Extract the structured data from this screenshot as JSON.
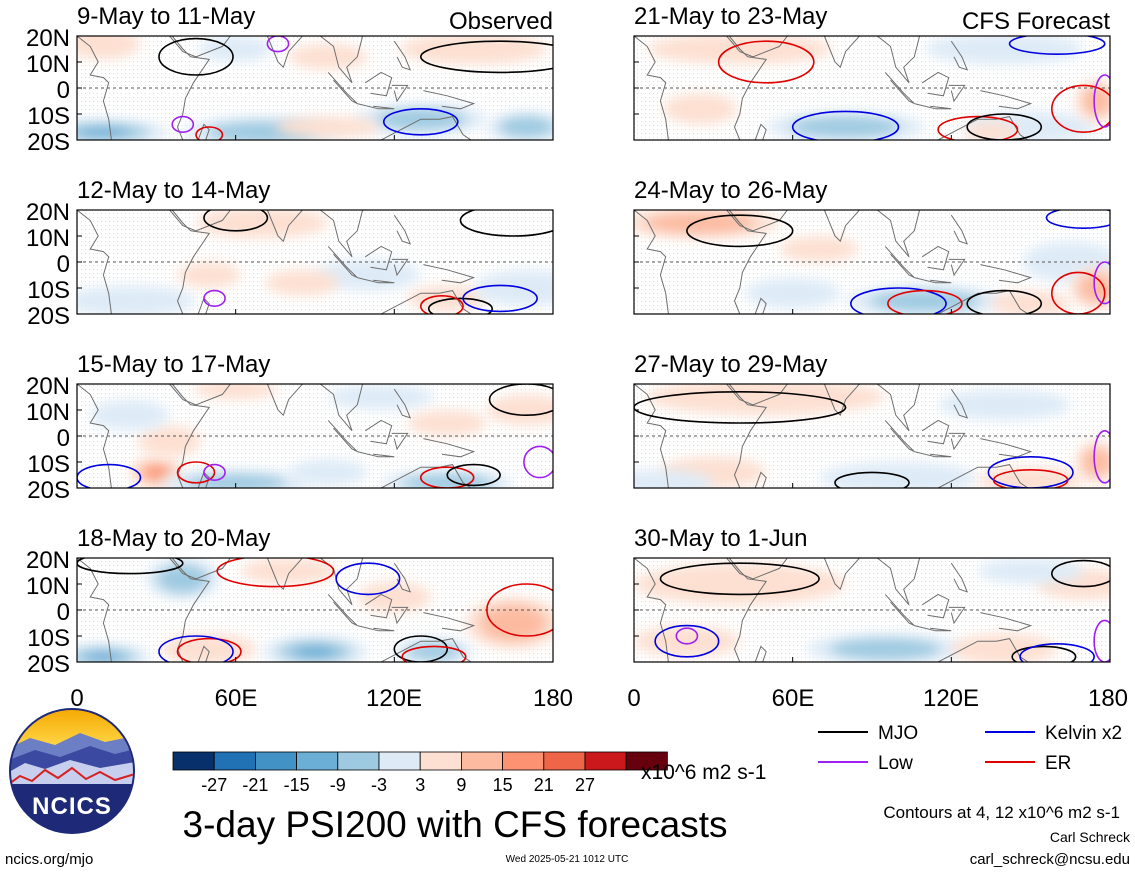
{
  "figure": {
    "title": "3-day PSI200 with CFS forecasts",
    "units": "x10^6 m2 s-1",
    "contour_note": "Contours at 4, 12 x10^6 m2 s-1",
    "author": "Carl Schreck",
    "email": "carl_schreck@ncsu.edu",
    "site": "ncics.org/mjo",
    "timestamp": "Wed 2025-05-21 1012 UTC",
    "logo_text": "NCICS"
  },
  "colors": {
    "neg": [
      "#08306b",
      "#2171b5",
      "#4292c6",
      "#6baed6",
      "#9ecae1",
      "#deebf7"
    ],
    "pos": [
      "#fde0d2",
      "#fcbba1",
      "#fc9272",
      "#ef6548",
      "#cb181d",
      "#67000d"
    ],
    "mjo": "#000000",
    "kelvin": "#0000e0",
    "low": "#a020f0",
    "er": "#e00000"
  },
  "legend": {
    "items": [
      {
        "label": "MJO",
        "key": "mjo"
      },
      {
        "label": "Kelvin x2",
        "key": "kelvin"
      },
      {
        "label": "Low",
        "key": "low"
      },
      {
        "label": "ER",
        "key": "er"
      }
    ]
  },
  "colorbar": {
    "labels": [
      "-27",
      "-21",
      "-15",
      "-9",
      "-3",
      "3",
      "9",
      "15",
      "21",
      "27"
    ]
  },
  "chart_data": {
    "type": "heatmap",
    "columns": [
      {
        "header": "Observed"
      },
      {
        "header": "CFS Forecast"
      }
    ],
    "xlim": [
      0,
      180
    ],
    "ylim": [
      -20,
      20
    ],
    "x_ticks": [
      "0",
      "60E",
      "120E",
      "180"
    ],
    "y_ticks": [
      "20N",
      "10N",
      "0",
      "10S",
      "20S"
    ],
    "panels": [
      {
        "col": 0,
        "row": 0,
        "label": "9-May to 11-May",
        "blobs": [
          [
            10,
            17,
            14,
            6,
            1
          ],
          [
            60,
            15,
            14,
            5,
            -1
          ],
          [
            95,
            12,
            15,
            5,
            1
          ],
          [
            150,
            15,
            28,
            6,
            1
          ],
          [
            10,
            -17,
            25,
            5,
            -3
          ],
          [
            70,
            -17,
            30,
            6,
            -2
          ],
          [
            130,
            -12,
            25,
            6,
            -2
          ],
          [
            170,
            -15,
            15,
            6,
            -2
          ],
          [
            95,
            -15,
            20,
            4,
            1
          ]
        ],
        "contours": [
          {
            "key": "mjo",
            "lon": 45,
            "lat": 12,
            "rx": 14,
            "ry": 7
          },
          {
            "key": "mjo",
            "lon": 160,
            "lat": 12,
            "rx": 30,
            "ry": 6
          },
          {
            "key": "kelvin",
            "lon": 130,
            "lat": -13,
            "rx": 14,
            "ry": 5
          },
          {
            "key": "low",
            "lon": 40,
            "lat": -14,
            "rx": 4,
            "ry": 3
          },
          {
            "key": "er",
            "lon": 50,
            "lat": -18,
            "rx": 5,
            "ry": 3
          },
          {
            "key": "low",
            "lon": 76,
            "lat": 17,
            "rx": 4,
            "ry": 3
          }
        ]
      },
      {
        "col": 0,
        "row": 1,
        "label": "12-May to 14-May",
        "blobs": [
          [
            50,
            -5,
            12,
            5,
            1
          ],
          [
            70,
            15,
            25,
            6,
            1
          ],
          [
            110,
            -5,
            20,
            6,
            -1
          ],
          [
            140,
            -14,
            15,
            5,
            1
          ],
          [
            170,
            -10,
            20,
            7,
            -1
          ],
          [
            20,
            -15,
            25,
            6,
            -1
          ],
          [
            85,
            -8,
            14,
            5,
            1
          ]
        ],
        "contours": [
          {
            "key": "mjo",
            "lon": 165,
            "lat": 16,
            "rx": 20,
            "ry": 6
          },
          {
            "key": "mjo",
            "lon": 60,
            "lat": 17,
            "rx": 12,
            "ry": 5
          },
          {
            "key": "mjo",
            "lon": 145,
            "lat": -18,
            "rx": 12,
            "ry": 4
          },
          {
            "key": "kelvin",
            "lon": 160,
            "lat": -14,
            "rx": 14,
            "ry": 5
          },
          {
            "key": "er",
            "lon": 138,
            "lat": -17,
            "rx": 8,
            "ry": 4
          },
          {
            "key": "low",
            "lon": 52,
            "lat": -14,
            "rx": 4,
            "ry": 3
          }
        ]
      },
      {
        "col": 0,
        "row": 2,
        "label": "15-May to 17-May",
        "blobs": [
          [
            30,
            -14,
            10,
            6,
            3
          ],
          [
            35,
            -2,
            12,
            6,
            1
          ],
          [
            20,
            8,
            15,
            6,
            -1
          ],
          [
            60,
            18,
            16,
            4,
            1
          ],
          [
            115,
            15,
            20,
            5,
            -1
          ],
          [
            140,
            5,
            15,
            5,
            1
          ],
          [
            170,
            10,
            15,
            6,
            1
          ],
          [
            60,
            -18,
            28,
            5,
            -2
          ],
          [
            140,
            -18,
            25,
            5,
            -2
          ],
          [
            95,
            -14,
            15,
            5,
            -1
          ]
        ],
        "contours": [
          {
            "key": "er",
            "lon": 45,
            "lat": -14,
            "rx": 7,
            "ry": 4
          },
          {
            "key": "er",
            "lon": 140,
            "lat": -16,
            "rx": 10,
            "ry": 4
          },
          {
            "key": "mjo",
            "lon": 150,
            "lat": -15,
            "rx": 10,
            "ry": 4
          },
          {
            "key": "mjo",
            "lon": 170,
            "lat": 14,
            "rx": 14,
            "ry": 6
          },
          {
            "key": "kelvin",
            "lon": 12,
            "lat": -16,
            "rx": 12,
            "ry": 5
          },
          {
            "key": "low",
            "lon": 52,
            "lat": -14,
            "rx": 4,
            "ry": 3
          },
          {
            "key": "low",
            "lon": 175,
            "lat": -10,
            "rx": 6,
            "ry": 6
          }
        ]
      },
      {
        "col": 0,
        "row": 3,
        "label": "18-May to 20-May",
        "blobs": [
          [
            40,
            12,
            14,
            8,
            -2
          ],
          [
            120,
            5,
            14,
            6,
            1
          ],
          [
            165,
            -5,
            18,
            10,
            2
          ],
          [
            50,
            -15,
            18,
            6,
            1
          ],
          [
            10,
            -18,
            18,
            5,
            -3
          ],
          [
            90,
            -16,
            20,
            6,
            -3
          ],
          [
            135,
            -16,
            15,
            5,
            -2
          ],
          [
            80,
            15,
            18,
            5,
            1
          ]
        ],
        "contours": [
          {
            "key": "er",
            "lon": 75,
            "lat": 15,
            "rx": 22,
            "ry": 6
          },
          {
            "key": "er",
            "lon": 170,
            "lat": 0,
            "rx": 15,
            "ry": 10
          },
          {
            "key": "kelvin",
            "lon": 110,
            "lat": 12,
            "rx": 12,
            "ry": 6
          },
          {
            "key": "er",
            "lon": 50,
            "lat": -16,
            "rx": 12,
            "ry": 5
          },
          {
            "key": "kelvin",
            "lon": 45,
            "lat": -16,
            "rx": 14,
            "ry": 6
          },
          {
            "key": "mjo",
            "lon": 130,
            "lat": -15,
            "rx": 10,
            "ry": 5
          },
          {
            "key": "er",
            "lon": 135,
            "lat": -18,
            "rx": 12,
            "ry": 4
          },
          {
            "key": "mjo",
            "lon": 20,
            "lat": 18,
            "rx": 20,
            "ry": 4
          }
        ]
      },
      {
        "col": 1,
        "row": 0,
        "label": "21-May to 23-May",
        "blobs": [
          [
            40,
            15,
            35,
            6,
            1
          ],
          [
            140,
            15,
            30,
            6,
            -1
          ],
          [
            25,
            -8,
            14,
            6,
            1
          ],
          [
            80,
            -15,
            30,
            6,
            -2
          ],
          [
            150,
            -15,
            25,
            6,
            -1
          ],
          [
            175,
            -5,
            8,
            8,
            2
          ],
          [
            135,
            -17,
            10,
            4,
            1
          ]
        ],
        "contours": [
          {
            "key": "er",
            "lon": 50,
            "lat": 10,
            "rx": 18,
            "ry": 8
          },
          {
            "key": "kelvin",
            "lon": 160,
            "lat": 17,
            "rx": 18,
            "ry": 4
          },
          {
            "key": "kelvin",
            "lon": 80,
            "lat": -15,
            "rx": 20,
            "ry": 6
          },
          {
            "key": "er",
            "lon": 130,
            "lat": -16,
            "rx": 15,
            "ry": 5
          },
          {
            "key": "mjo",
            "lon": 140,
            "lat": -15,
            "rx": 14,
            "ry": 5
          },
          {
            "key": "er",
            "lon": 170,
            "lat": -8,
            "rx": 12,
            "ry": 9
          },
          {
            "key": "low",
            "lon": 178,
            "lat": -5,
            "rx": 4,
            "ry": 10
          }
        ]
      },
      {
        "col": 1,
        "row": 1,
        "label": "24-May to 26-May",
        "blobs": [
          [
            25,
            15,
            30,
            6,
            2
          ],
          [
            70,
            5,
            15,
            5,
            1
          ],
          [
            110,
            -15,
            30,
            6,
            -2
          ],
          [
            150,
            -16,
            15,
            5,
            1
          ],
          [
            165,
            0,
            18,
            8,
            -1
          ],
          [
            175,
            -10,
            10,
            8,
            2
          ],
          [
            60,
            -12,
            18,
            6,
            -1
          ]
        ],
        "contours": [
          {
            "key": "mjo",
            "lon": 40,
            "lat": 12,
            "rx": 20,
            "ry": 6
          },
          {
            "key": "mjo",
            "lon": 140,
            "lat": -16,
            "rx": 14,
            "ry": 5
          },
          {
            "key": "kelvin",
            "lon": 100,
            "lat": -16,
            "rx": 18,
            "ry": 6
          },
          {
            "key": "er",
            "lon": 110,
            "lat": -16,
            "rx": 14,
            "ry": 5
          },
          {
            "key": "er",
            "lon": 168,
            "lat": -12,
            "rx": 10,
            "ry": 8
          },
          {
            "key": "kelvin",
            "lon": 170,
            "lat": 17,
            "rx": 14,
            "ry": 4
          },
          {
            "key": "low",
            "lon": 178,
            "lat": -8,
            "rx": 4,
            "ry": 8
          }
        ]
      },
      {
        "col": 1,
        "row": 2,
        "label": "27-May to 29-May",
        "blobs": [
          [
            50,
            15,
            45,
            7,
            1
          ],
          [
            140,
            12,
            25,
            6,
            -1
          ],
          [
            30,
            -14,
            20,
            6,
            1
          ],
          [
            100,
            -16,
            30,
            6,
            -1
          ],
          [
            150,
            -17,
            20,
            5,
            1
          ],
          [
            175,
            -10,
            8,
            8,
            2
          ],
          [
            10,
            -18,
            20,
            5,
            -1
          ]
        ],
        "contours": [
          {
            "key": "mjo",
            "lon": 40,
            "lat": 11,
            "rx": 40,
            "ry": 6
          },
          {
            "key": "mjo",
            "lon": 90,
            "lat": -18,
            "rx": 14,
            "ry": 4
          },
          {
            "key": "kelvin",
            "lon": 150,
            "lat": -14,
            "rx": 16,
            "ry": 6
          },
          {
            "key": "er",
            "lon": 150,
            "lat": -17,
            "rx": 14,
            "ry": 4
          },
          {
            "key": "low",
            "lon": 178,
            "lat": -8,
            "rx": 4,
            "ry": 10
          }
        ]
      },
      {
        "col": 1,
        "row": 3,
        "label": "30-May to 1-Jun",
        "blobs": [
          [
            40,
            10,
            40,
            8,
            1
          ],
          [
            20,
            -12,
            20,
            6,
            1
          ],
          [
            95,
            -15,
            30,
            6,
            -2
          ],
          [
            140,
            -15,
            20,
            6,
            1
          ],
          [
            170,
            10,
            18,
            6,
            1
          ],
          [
            150,
            15,
            20,
            5,
            -1
          ]
        ],
        "contours": [
          {
            "key": "mjo",
            "lon": 40,
            "lat": 12,
            "rx": 30,
            "ry": 6
          },
          {
            "key": "kelvin",
            "lon": 20,
            "lat": -12,
            "rx": 12,
            "ry": 6
          },
          {
            "key": "low",
            "lon": 20,
            "lat": -10,
            "rx": 4,
            "ry": 3
          },
          {
            "key": "mjo",
            "lon": 155,
            "lat": -18,
            "rx": 12,
            "ry": 4
          },
          {
            "key": "kelvin",
            "lon": 160,
            "lat": -18,
            "rx": 14,
            "ry": 5
          },
          {
            "key": "mjo",
            "lon": 170,
            "lat": 14,
            "rx": 12,
            "ry": 5
          },
          {
            "key": "low",
            "lon": 178,
            "lat": -12,
            "rx": 4,
            "ry": 8
          }
        ]
      }
    ]
  }
}
